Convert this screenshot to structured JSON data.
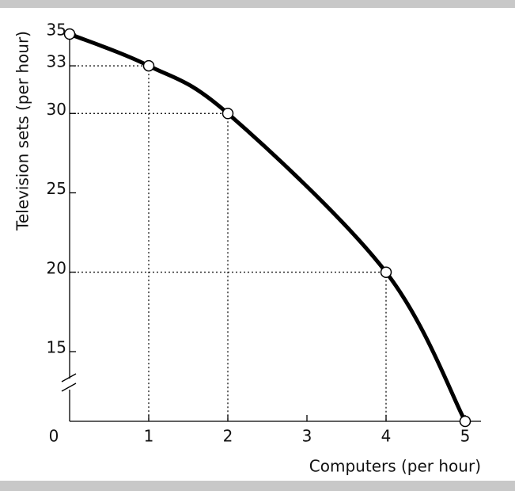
{
  "chart_data": {
    "type": "line",
    "x_label": "Computers (per hour)",
    "y_label": "Television sets (per hour)",
    "x": [
      0,
      1,
      2,
      4,
      5
    ],
    "series": [
      {
        "color": "#000000",
        "values": [
          35,
          33,
          30,
          20,
          0
        ]
      }
    ],
    "xlim": [
      0,
      5.2
    ],
    "xticks": [
      0,
      1,
      2,
      3,
      4,
      5
    ],
    "ylim": [
      0,
      35
    ],
    "yticks": [
      15,
      20,
      25,
      30,
      33,
      35
    ],
    "axis_break": true,
    "guide_lines": true
  }
}
